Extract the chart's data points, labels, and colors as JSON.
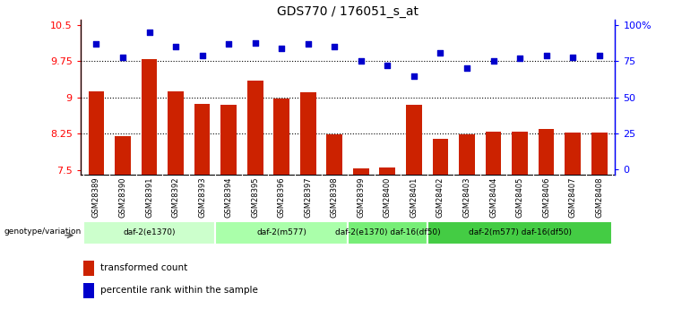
{
  "title": "GDS770 / 176051_s_at",
  "samples": [
    "GSM28389",
    "GSM28390",
    "GSM28391",
    "GSM28392",
    "GSM28393",
    "GSM28394",
    "GSM28395",
    "GSM28396",
    "GSM28397",
    "GSM28398",
    "GSM28399",
    "GSM28400",
    "GSM28401",
    "GSM28402",
    "GSM28403",
    "GSM28404",
    "GSM28405",
    "GSM28406",
    "GSM28407",
    "GSM28408"
  ],
  "transformed_count": [
    9.12,
    8.2,
    9.79,
    9.12,
    8.87,
    8.85,
    9.35,
    8.97,
    9.1,
    8.24,
    7.52,
    7.55,
    8.85,
    8.14,
    8.24,
    8.28,
    8.29,
    8.34,
    8.27,
    8.27
  ],
  "percentile": [
    87,
    78,
    95,
    85,
    79,
    87,
    88,
    84,
    87,
    85,
    75,
    72,
    65,
    81,
    70,
    75,
    77,
    79,
    78,
    79
  ],
  "ylim_left": [
    7.4,
    10.6
  ],
  "ylim_right": [
    -3.6,
    103.6
  ],
  "yticks_left": [
    7.5,
    8.25,
    9.0,
    9.75,
    10.5
  ],
  "yticks_left_labels": [
    "7.5",
    "8.25",
    "9",
    "9.75",
    "10.5"
  ],
  "yticks_right": [
    0,
    25,
    50,
    75,
    100
  ],
  "yticks_right_labels": [
    "0",
    "25",
    "50",
    "75",
    "100%"
  ],
  "hlines": [
    8.25,
    9.0,
    9.75
  ],
  "bar_color": "#cc2200",
  "dot_color": "#0000cc",
  "groups": [
    {
      "label": "daf-2(e1370)",
      "start": 0,
      "end": 5,
      "color": "#ccffcc"
    },
    {
      "label": "daf-2(m577)",
      "start": 5,
      "end": 10,
      "color": "#aaffaa"
    },
    {
      "label": "daf-2(e1370) daf-16(df50)",
      "start": 10,
      "end": 13,
      "color": "#77ee77"
    },
    {
      "label": "daf-2(m577) daf-16(df50)",
      "start": 13,
      "end": 20,
      "color": "#44cc44"
    }
  ],
  "genotype_label": "genotype/variation",
  "legend_bar": "transformed count",
  "legend_dot": "percentile rank within the sample",
  "tick_bg_color": "#cccccc"
}
